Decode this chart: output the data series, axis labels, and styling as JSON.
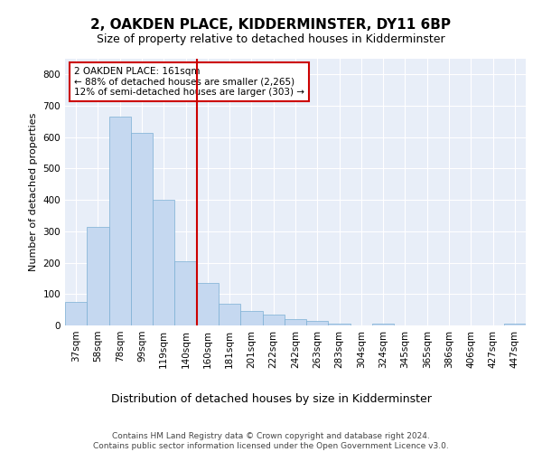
{
  "title": "2, OAKDEN PLACE, KIDDERMINSTER, DY11 6BP",
  "subtitle": "Size of property relative to detached houses in Kidderminster",
  "xlabel": "Distribution of detached houses by size in Kidderminster",
  "ylabel": "Number of detached properties",
  "categories": [
    "37sqm",
    "58sqm",
    "78sqm",
    "99sqm",
    "119sqm",
    "140sqm",
    "160sqm",
    "181sqm",
    "201sqm",
    "222sqm",
    "242sqm",
    "263sqm",
    "283sqm",
    "304sqm",
    "324sqm",
    "345sqm",
    "365sqm",
    "386sqm",
    "406sqm",
    "427sqm",
    "447sqm"
  ],
  "values": [
    75,
    315,
    665,
    615,
    400,
    205,
    135,
    70,
    45,
    35,
    20,
    13,
    6,
    0,
    7,
    0,
    0,
    0,
    0,
    0,
    7
  ],
  "bar_color": "#c5d8f0",
  "bar_edge_color": "#7bafd4",
  "highlight_color": "#cc0000",
  "annotation_text": "2 OAKDEN PLACE: 161sqm\n← 88% of detached houses are smaller (2,265)\n12% of semi-detached houses are larger (303) →",
  "annotation_box_color": "#ffffff",
  "annotation_box_edge_color": "#cc0000",
  "ylim": [
    0,
    850
  ],
  "yticks": [
    0,
    100,
    200,
    300,
    400,
    500,
    600,
    700,
    800
  ],
  "background_color": "#e8eef8",
  "grid_color": "#ffffff",
  "footer_text": "Contains HM Land Registry data © Crown copyright and database right 2024.\nContains public sector information licensed under the Open Government Licence v3.0.",
  "title_fontsize": 11,
  "subtitle_fontsize": 9,
  "xlabel_fontsize": 9,
  "ylabel_fontsize": 8,
  "footer_fontsize": 6.5,
  "tick_fontsize": 7.5,
  "annotation_fontsize": 7.5
}
